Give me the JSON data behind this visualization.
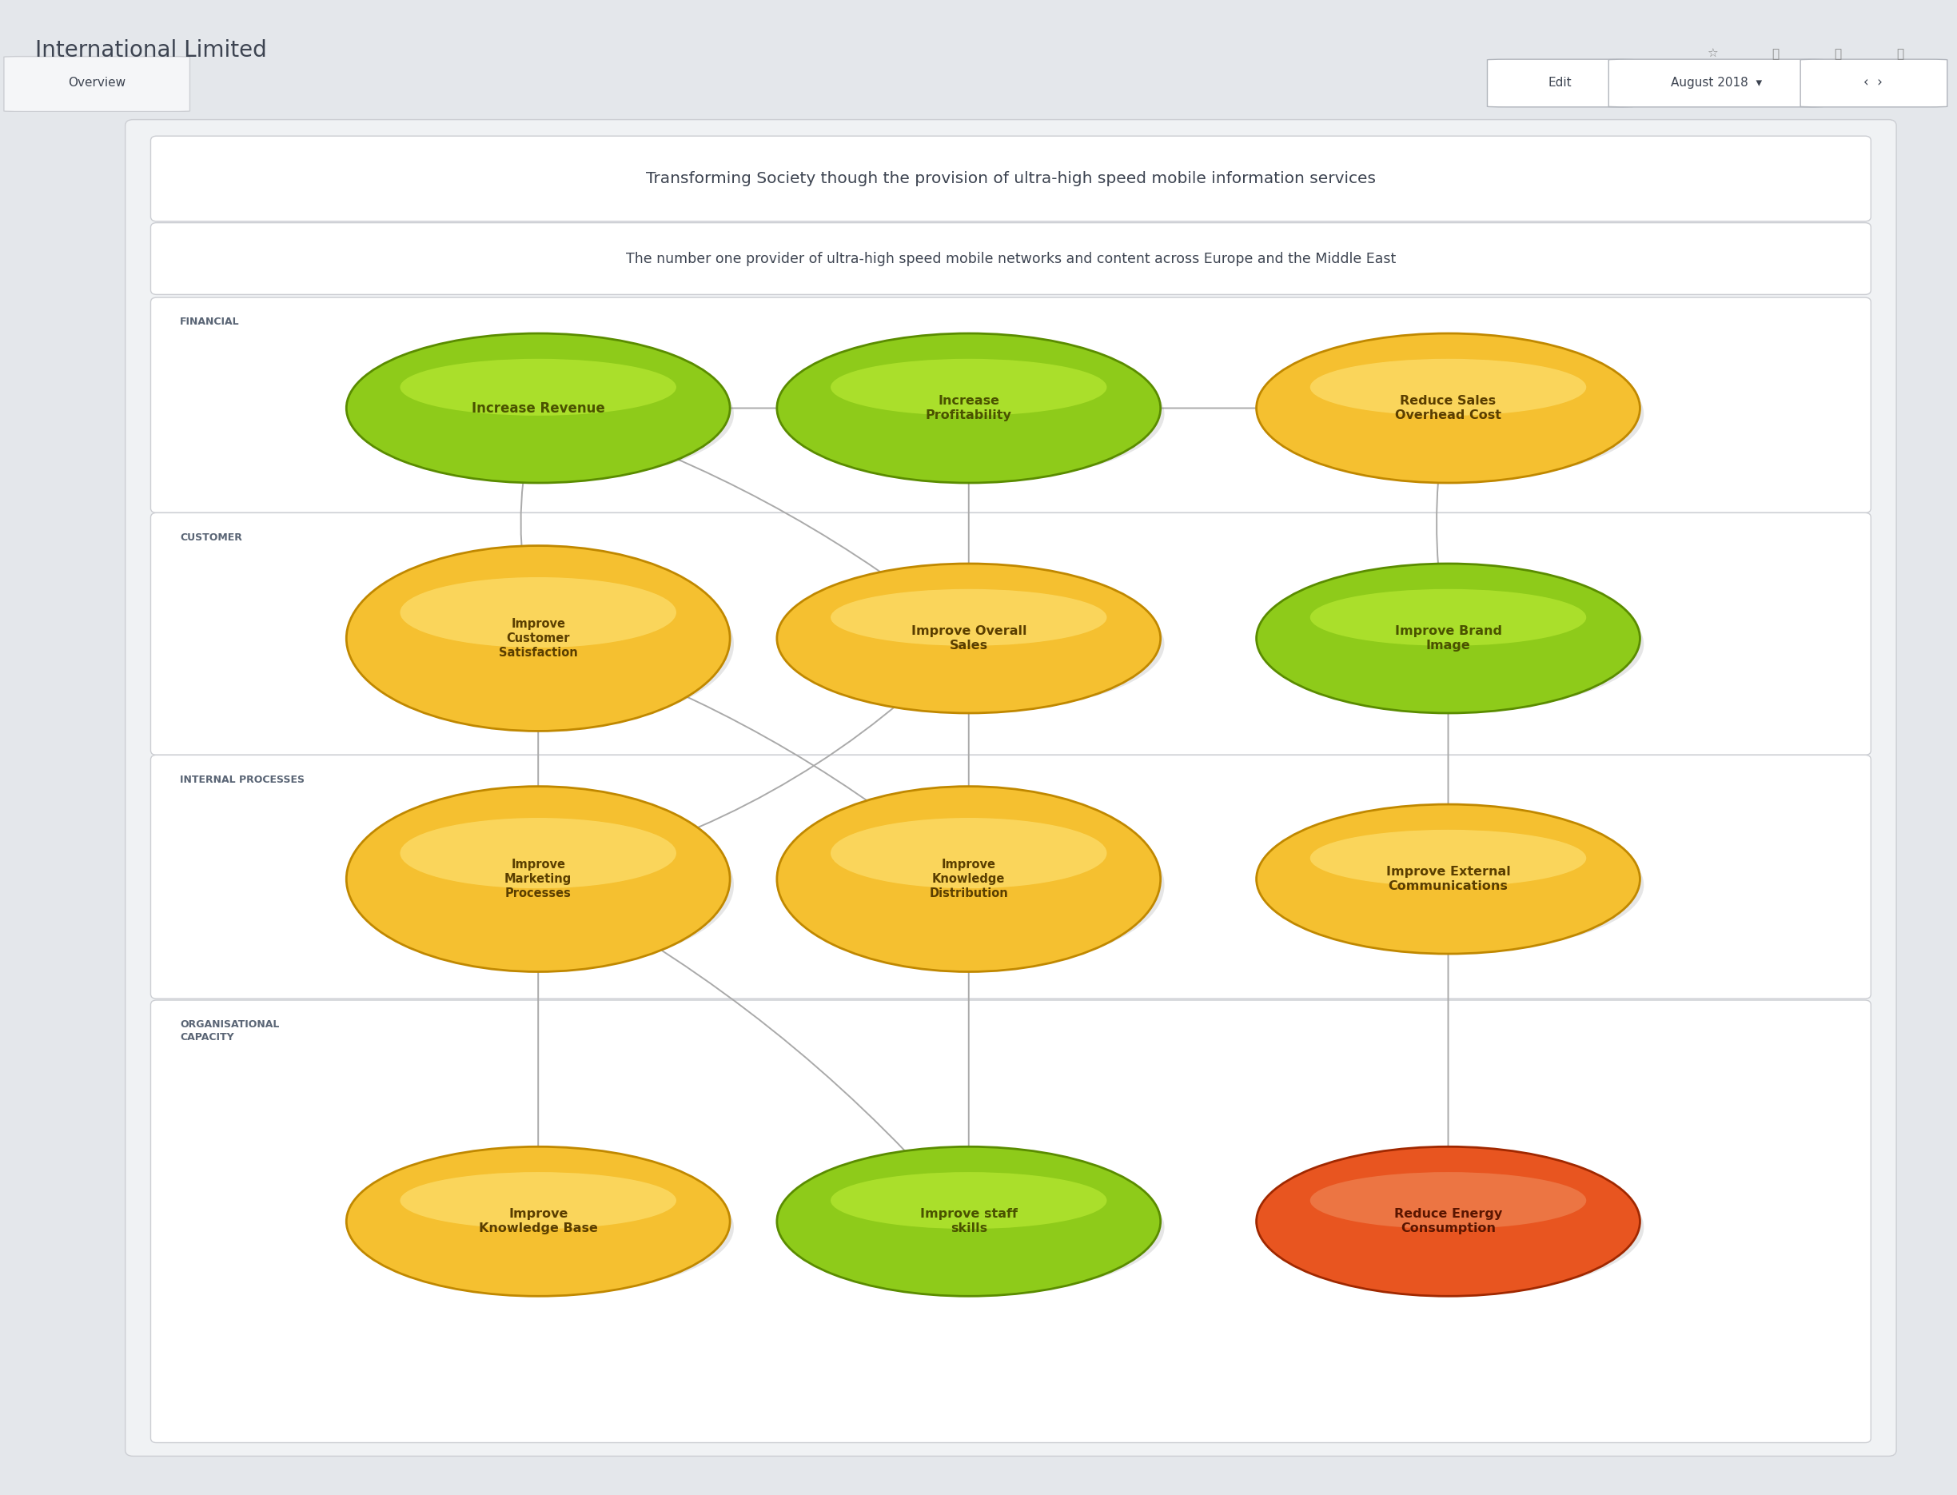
{
  "title": "International Limited",
  "vision": "Transforming Society though the provision of ultra-high speed mobile information services",
  "mission": "The number one provider of ultra-high speed mobile networks and content across Europe and the Middle East",
  "bg_color": "#e4e7eb",
  "tab_label": "Overview",
  "edit_label": "Edit",
  "date_label": "August 2018",
  "nodes": [
    {
      "id": "increase_revenue",
      "label": "Increase Revenue",
      "col": 0,
      "row": 0,
      "color": "green",
      "text_color": "#4a5200"
    },
    {
      "id": "increase_profitability",
      "label": "Increase\nProfitability",
      "col": 1,
      "row": 0,
      "color": "green",
      "text_color": "#4a5200"
    },
    {
      "id": "reduce_sales",
      "label": "Reduce Sales\nOverhead Cost",
      "col": 2,
      "row": 0,
      "color": "yellow",
      "text_color": "#5a3e00"
    },
    {
      "id": "improve_customer",
      "label": "Improve\nCustomer\nSatisfaction",
      "col": 0,
      "row": 1,
      "color": "yellow",
      "text_color": "#5a3e00"
    },
    {
      "id": "improve_overall_sales",
      "label": "Improve Overall\nSales",
      "col": 1,
      "row": 1,
      "color": "yellow",
      "text_color": "#5a3e00"
    },
    {
      "id": "improve_brand",
      "label": "Improve Brand\nImage",
      "col": 2,
      "row": 1,
      "color": "green",
      "text_color": "#4a5200"
    },
    {
      "id": "improve_marketing",
      "label": "Improve\nMarketing\nProcesses",
      "col": 0,
      "row": 2,
      "color": "yellow",
      "text_color": "#5a3e00"
    },
    {
      "id": "improve_knowledge_dist",
      "label": "Improve\nKnowledge\nDistribution",
      "col": 1,
      "row": 2,
      "color": "yellow",
      "text_color": "#5a3e00"
    },
    {
      "id": "improve_external_comm",
      "label": "Improve External\nCommunications",
      "col": 2,
      "row": 2,
      "color": "yellow",
      "text_color": "#5a3e00"
    },
    {
      "id": "improve_knowledge_base",
      "label": "Improve\nKnowledge Base",
      "col": 0,
      "row": 3,
      "color": "yellow",
      "text_color": "#5a3e00"
    },
    {
      "id": "improve_staff_skills",
      "label": "Improve staff\nskills",
      "col": 1,
      "row": 3,
      "color": "green",
      "text_color": "#4a5200"
    },
    {
      "id": "reduce_energy",
      "label": "Reduce Energy\nConsumption",
      "col": 2,
      "row": 3,
      "color": "red",
      "text_color": "#5a1500"
    }
  ],
  "arrows": [
    {
      "from": "increase_revenue",
      "to": "increase_profitability",
      "rad": 0.0
    },
    {
      "from": "increase_profitability",
      "to": "reduce_sales",
      "rad": 0.0
    },
    {
      "from": "improve_customer",
      "to": "increase_revenue",
      "rad": -0.15
    },
    {
      "from": "improve_overall_sales",
      "to": "increase_revenue",
      "rad": 0.1
    },
    {
      "from": "improve_overall_sales",
      "to": "increase_profitability",
      "rad": 0.0
    },
    {
      "from": "improve_brand",
      "to": "reduce_sales",
      "rad": -0.1
    },
    {
      "from": "improve_marketing",
      "to": "improve_customer",
      "rad": 0.0
    },
    {
      "from": "improve_marketing",
      "to": "improve_overall_sales",
      "rad": 0.15
    },
    {
      "from": "improve_knowledge_dist",
      "to": "improve_customer",
      "rad": 0.1
    },
    {
      "from": "improve_knowledge_dist",
      "to": "improve_overall_sales",
      "rad": 0.0
    },
    {
      "from": "improve_external_comm",
      "to": "improve_brand",
      "rad": 0.0
    },
    {
      "from": "improve_knowledge_base",
      "to": "improve_marketing",
      "rad": 0.0
    },
    {
      "from": "improve_staff_skills",
      "to": "improve_marketing",
      "rad": 0.1
    },
    {
      "from": "improve_staff_skills",
      "to": "improve_knowledge_dist",
      "rad": 0.0
    },
    {
      "from": "reduce_energy",
      "to": "improve_external_comm",
      "rad": 0.0
    }
  ],
  "layer_labels": [
    "FINANCIAL",
    "CUSTOMER",
    "INTERNAL PROCESSES",
    "ORGANISATIONAL\nCAPACITY"
  ],
  "green_main": "#8ecb1a",
  "green_hi": "#c2f03a",
  "green_dark": "#5a8c00",
  "yellow_main": "#f5c030",
  "yellow_hi": "#ffe880",
  "yellow_dark": "#c08800",
  "red_main": "#e85520",
  "red_hi": "#f09060",
  "red_dark": "#a02800"
}
